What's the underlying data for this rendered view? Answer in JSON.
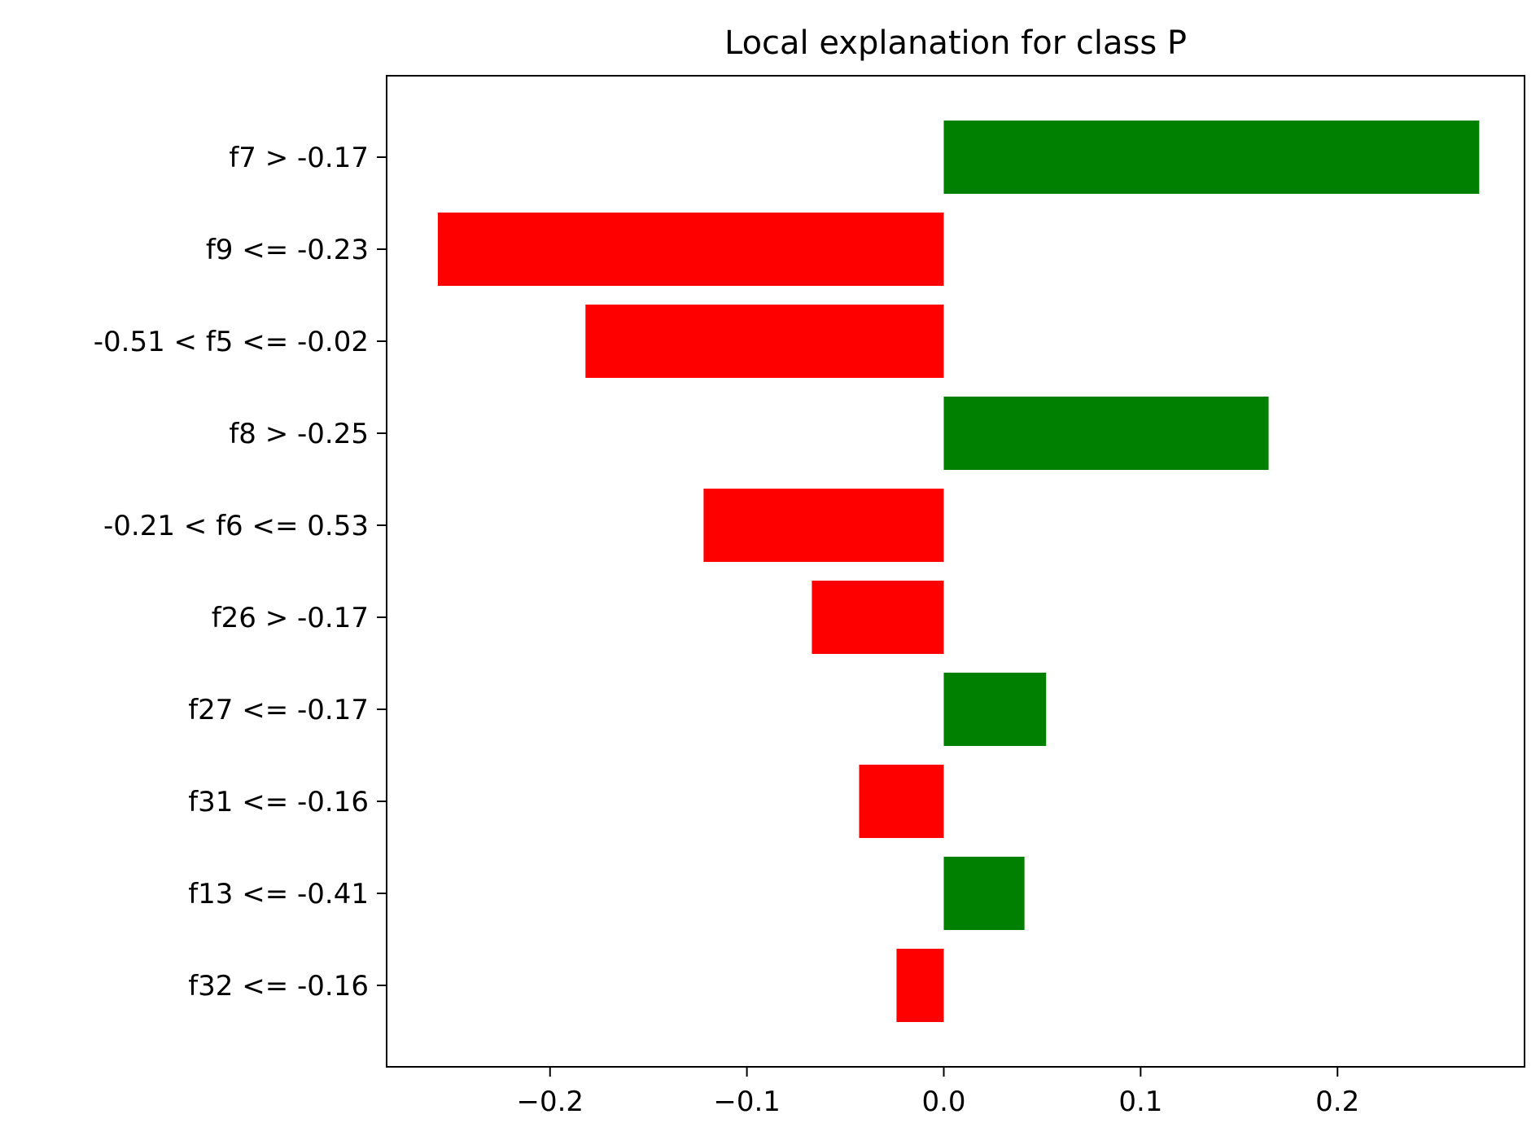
{
  "chart_data": {
    "type": "bar",
    "orientation": "horizontal",
    "title": "Local explanation for class P",
    "xlabel": "",
    "ylabel": "",
    "xlim": [
      -0.283,
      0.295
    ],
    "grid": false,
    "categories": [
      "f7 > -0.17",
      "f9 <= -0.23",
      "-0.51 < f5 <= -0.02",
      "f8 > -0.25",
      "-0.21 < f6 <= 0.53",
      "f26 > -0.17",
      "f27 <= -0.17",
      "f31 <= -0.16",
      "f13 <= -0.41",
      "f32 <= -0.16"
    ],
    "values": [
      0.272,
      -0.257,
      -0.182,
      0.165,
      -0.122,
      -0.067,
      0.052,
      -0.043,
      0.041,
      -0.024
    ],
    "x_ticks": [
      {
        "value": -0.2,
        "label": "−0.2"
      },
      {
        "value": -0.1,
        "label": "−0.1"
      },
      {
        "value": 0.0,
        "label": "0.0"
      },
      {
        "value": 0.1,
        "label": "0.1"
      },
      {
        "value": 0.2,
        "label": "0.2"
      }
    ],
    "colors": {
      "positive": "#008000",
      "negative": "#ff0000"
    }
  }
}
